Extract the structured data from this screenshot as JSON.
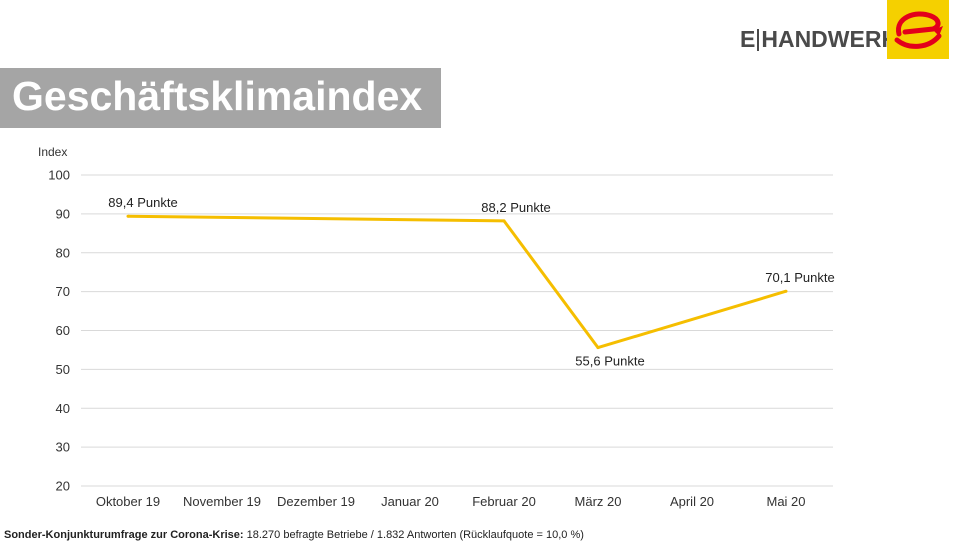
{
  "brand": {
    "left": "E",
    "right": "HANDWERK",
    "logo": "e-handwerk-logo-icon"
  },
  "title": "Geschäftsklimaindex",
  "footer": {
    "bold": "Sonder-Konjunkturumfrage zur Corona-Krise:",
    "text": " 18.270 befragte Betriebe / 1.832 Antworten (Rücklaufquote = 10,0 %)"
  },
  "colors": {
    "line": "#F5BE00",
    "grid": "#D9D9D9",
    "title_band": "#A5A5A5",
    "logo_bg": "#F5D000",
    "logo_red": "#E3001B"
  },
  "chart_data": {
    "type": "line",
    "ylabel": "Index",
    "ylim": [
      20,
      100
    ],
    "yticks": [
      20,
      30,
      40,
      50,
      60,
      70,
      80,
      90,
      100
    ],
    "categories": [
      "Oktober 19",
      "November 19",
      "Dezember 19",
      "Januar 20",
      "Februar 20",
      "März 20",
      "April 20",
      "Mai 20"
    ],
    "points": [
      {
        "x": "Oktober 19",
        "y": 89.4,
        "label": "89,4 Punkte"
      },
      {
        "x": "Februar 20",
        "y": 88.2,
        "label": "88,2 Punkte"
      },
      {
        "x": "März 20",
        "y": 55.6,
        "label": "55,6 Punkte"
      },
      {
        "x": "Mai 20",
        "y": 70.1,
        "label": "70,1 Punkte"
      }
    ],
    "grid": true
  }
}
